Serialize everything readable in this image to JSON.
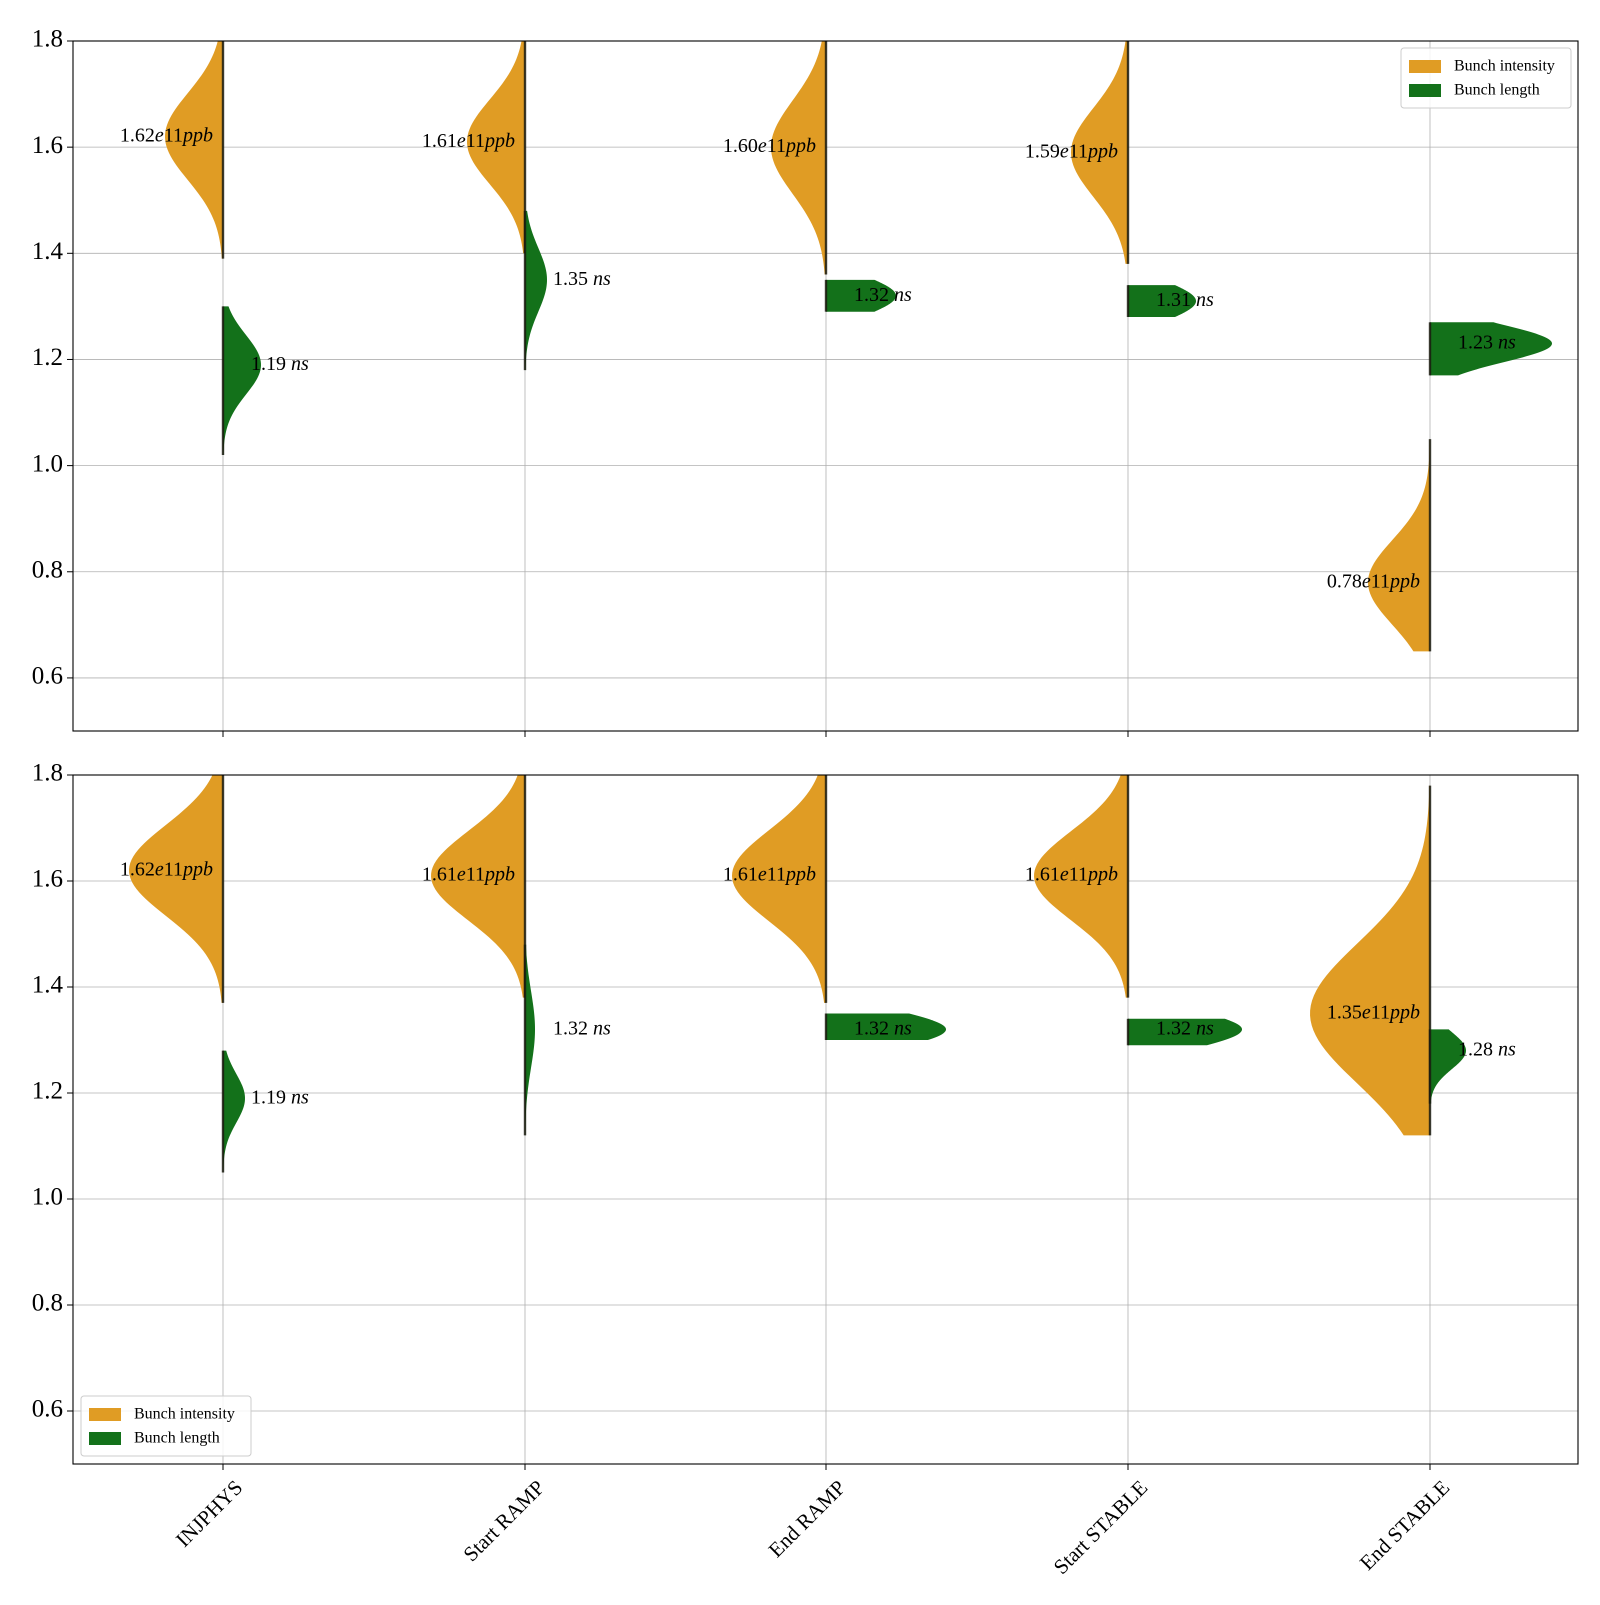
{
  "chart_data": [
    {
      "type": "violin",
      "categories": [
        "INJPHYS",
        "Start RAMP",
        "End RAMP",
        "Start STABLE",
        "End STABLE"
      ],
      "ylim": [
        0.5,
        1.8
      ],
      "yticks": [
        0.6,
        0.8,
        1.0,
        1.2,
        1.4,
        1.6,
        1.8
      ],
      "grid": true,
      "legend_position": "top-right",
      "colors": {
        "intensity": "#e09c24",
        "length": "#13711a"
      },
      "series": [
        {
          "name": "Bunch intensity",
          "side": "left",
          "median": [
            1.62,
            1.61,
            1.6,
            1.59,
            0.78
          ],
          "range_min": [
            1.39,
            1.4,
            1.36,
            1.38,
            0.65
          ],
          "range_max": [
            1.8,
            1.8,
            1.8,
            1.8,
            1.05
          ],
          "label_num": [
            "1.62",
            "1.61",
            "1.60",
            "1.59",
            "0.78"
          ],
          "label_unit": [
            "e11",
            "e11",
            "e11",
            "e11",
            "e11"
          ],
          "label_suffix": [
            "ppb",
            "ppb",
            "ppb",
            "ppb",
            "ppb"
          ]
        },
        {
          "name": "Bunch length",
          "side": "right",
          "median": [
            1.19,
            1.35,
            1.32,
            1.31,
            1.23
          ],
          "range_min": [
            1.02,
            1.18,
            1.29,
            1.28,
            1.17
          ],
          "range_max": [
            1.3,
            1.48,
            1.35,
            1.34,
            1.27
          ],
          "label_num": [
            "1.19",
            "1.35",
            "1.32",
            "1.31",
            "1.23"
          ],
          "label_suffix": [
            "ns",
            "ns",
            "ns",
            "ns",
            "ns"
          ]
        }
      ]
    },
    {
      "type": "violin",
      "categories": [
        "INJPHYS",
        "Start RAMP",
        "End RAMP",
        "Start STABLE",
        "End STABLE"
      ],
      "ylim": [
        0.5,
        1.8
      ],
      "yticks": [
        0.6,
        0.8,
        1.0,
        1.2,
        1.4,
        1.6,
        1.8
      ],
      "grid": true,
      "legend_position": "bottom-left",
      "colors": {
        "intensity": "#e09c24",
        "length": "#13711a"
      },
      "series": [
        {
          "name": "Bunch intensity",
          "side": "left",
          "median": [
            1.62,
            1.61,
            1.61,
            1.61,
            1.35
          ],
          "range_min": [
            1.37,
            1.38,
            1.37,
            1.38,
            1.12
          ],
          "range_max": [
            1.8,
            1.8,
            1.8,
            1.8,
            1.78
          ],
          "label_num": [
            "1.62",
            "1.61",
            "1.61",
            "1.61",
            "1.35"
          ],
          "label_unit": [
            "e11",
            "e11",
            "e11",
            "e11",
            "e11"
          ],
          "label_suffix": [
            "ppb",
            "ppb",
            "ppb",
            "ppb",
            "ppb"
          ]
        },
        {
          "name": "Bunch length",
          "side": "right",
          "median": [
            1.19,
            1.32,
            1.32,
            1.32,
            1.28
          ],
          "range_min": [
            1.05,
            1.12,
            1.3,
            1.29,
            1.18
          ],
          "range_max": [
            1.28,
            1.48,
            1.35,
            1.34,
            1.32
          ],
          "label_num": [
            "1.19",
            "1.32",
            "1.32",
            "1.32",
            "1.28"
          ],
          "label_suffix": [
            "ns",
            "ns",
            "ns",
            "ns",
            "ns"
          ]
        }
      ]
    }
  ]
}
